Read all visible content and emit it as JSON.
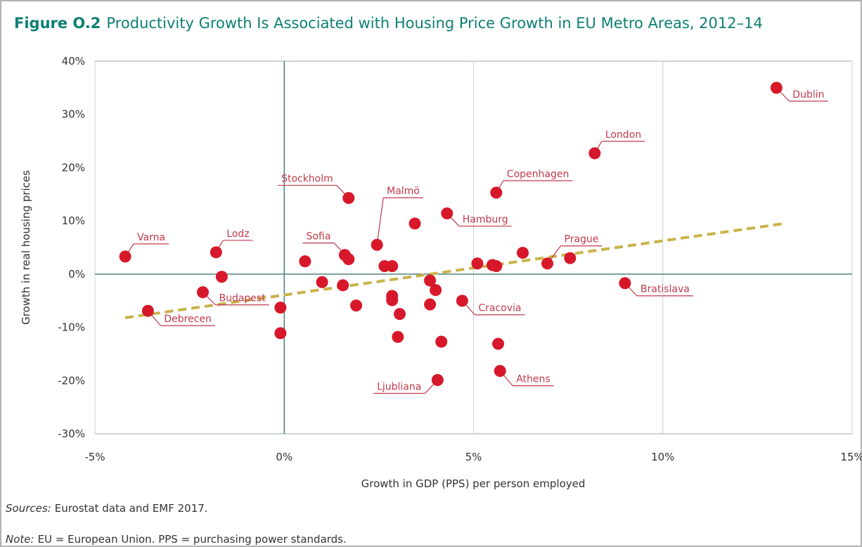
{
  "chart_data": {
    "type": "scatter",
    "figure_label": "Figure O.2",
    "title": "Productivity Growth Is Associated with Housing Price Growth in EU Metro Areas, 2012–14",
    "x_label": "Growth in GDP (PPS) per person employed",
    "y_label": "Growth in real housing prices",
    "source_label": "Sources:",
    "source_text": "Eurostat data and EMF 2017.",
    "note_label": "Note:",
    "note_text": "EU = European Union. PPS = purchasing power standards.",
    "xlim": [
      -5,
      15
    ],
    "ylim": [
      -30,
      40
    ],
    "xticks": [
      {
        "value": -5,
        "label": "-5%"
      },
      {
        "value": 0,
        "label": "0%"
      },
      {
        "value": 5,
        "label": "5%"
      },
      {
        "value": 10,
        "label": "10%"
      },
      {
        "value": 15,
        "label": "15%"
      }
    ],
    "yticks": [
      {
        "value": -30,
        "label": "-30%"
      },
      {
        "value": -20,
        "label": "-20%"
      },
      {
        "value": -10,
        "label": "-10%"
      },
      {
        "value": 0,
        "label": "0%"
      },
      {
        "value": 10,
        "label": "10%"
      },
      {
        "value": 20,
        "label": "20%"
      },
      {
        "value": 30,
        "label": "30%"
      },
      {
        "value": 40,
        "label": "40%"
      }
    ],
    "grid": true,
    "color": "#d7182a",
    "x": [
      13.0,
      8.2,
      5.6,
      1.7,
      4.3,
      2.45,
      -4.2,
      -1.8,
      1.6,
      6.95,
      9.0,
      -2.15,
      -3.6,
      4.7,
      5.7,
      4.05,
      3.45,
      1.7,
      0.55,
      2.65,
      2.85,
      -1.65,
      5.1,
      5.5,
      5.6,
      6.3,
      7.55,
      1.0,
      1.55,
      -0.1,
      1.9,
      -0.1,
      3.85,
      4.0,
      2.85,
      2.85,
      3.05,
      3.85,
      3.0,
      4.15,
      5.65
    ],
    "y": [
      35.0,
      22.7,
      15.3,
      14.3,
      11.4,
      5.5,
      3.3,
      4.1,
      3.6,
      2.0,
      -1.7,
      -3.4,
      -6.9,
      -5.0,
      -18.2,
      -19.9,
      9.5,
      2.8,
      2.4,
      1.5,
      1.5,
      -0.5,
      2.0,
      1.7,
      1.5,
      4.0,
      3.0,
      -1.5,
      -2.1,
      -6.3,
      -5.9,
      -11.1,
      -1.2,
      -3.0,
      -4.1,
      -4.9,
      -7.5,
      -5.7,
      -11.8,
      -12.7,
      -13.1
    ],
    "point_labels": [
      "Dublin",
      "London",
      "Copenhagen",
      "Stockholm",
      "Hamburg",
      "Malmö",
      "Varna",
      "Lodz",
      "Sofia",
      "Prague",
      "Bratislava",
      "Budapest",
      "Debrecen",
      "Cracovia",
      "Athens",
      "Ljubliana",
      null,
      null,
      null,
      null,
      null,
      null,
      null,
      null,
      null,
      null,
      null,
      null,
      null,
      null,
      null,
      null,
      null,
      null,
      null,
      null,
      null,
      null,
      null,
      null,
      null
    ],
    "trendline": {
      "x": [
        -4.2,
        13.2
      ],
      "y": [
        -8.2,
        9.5
      ],
      "color": "#c9b24a"
    }
  }
}
